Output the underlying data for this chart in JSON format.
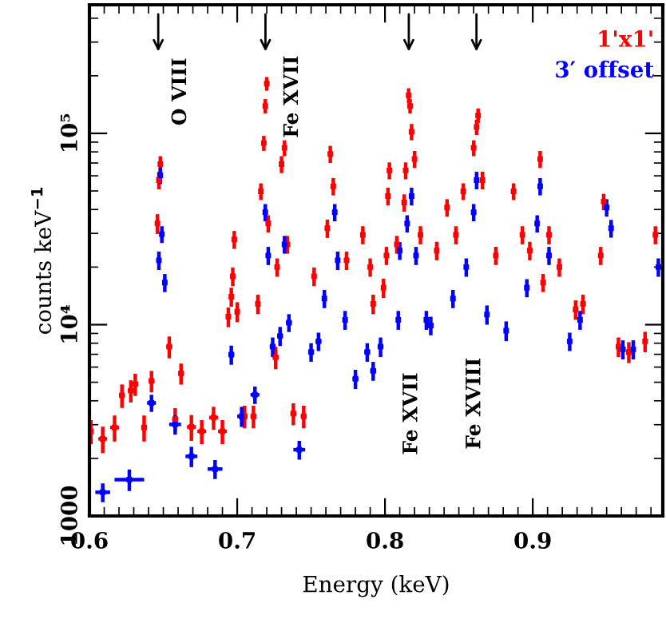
{
  "chart_data": {
    "type": "scatter",
    "xlabel": "Energy (keV)",
    "ylabel": "counts keV$^{−1}$",
    "log": "y",
    "xlim": [
      0.6,
      0.988
    ],
    "xticks": [
      0.6,
      0.7,
      0.8,
      0.9
    ],
    "ylim": [
      1000,
      470000
    ],
    "yticks": [
      1000,
      {
        "value": 10000,
        "label": "10⁴"
      },
      {
        "value": 100000,
        "label": "10⁵"
      }
    ],
    "grid": false,
    "legend": "top right",
    "annotations": [
      "O VIII",
      "Fe XVII",
      "Fe XVII",
      "Fe XVIII"
    ],
    "series": [
      {
        "name": "1'x1'",
        "color": "#ff0000",
        "x": [
          0.601,
          0.609,
          0.617,
          0.622,
          0.628,
          0.631,
          0.637,
          0.642,
          0.646,
          0.647,
          0.648,
          0.654,
          0.658,
          0.662,
          0.669,
          0.676,
          0.684,
          0.69,
          0.694,
          0.696,
          0.697,
          0.698,
          0.7,
          0.705,
          0.711,
          0.714,
          0.716,
          0.718,
          0.719,
          0.72,
          0.721,
          0.726,
          0.727,
          0.73,
          0.732,
          0.734,
          0.738,
          0.745,
          0.752,
          0.761,
          0.763,
          0.765,
          0.774,
          0.785,
          0.79,
          0.792,
          0.799,
          0.801,
          0.802,
          0.803,
          0.808,
          0.813,
          0.814,
          0.816,
          0.817,
          0.818,
          0.82,
          0.824,
          0.835,
          0.842,
          0.848,
          0.853,
          0.86,
          0.862,
          0.863,
          0.866,
          0.875,
          0.887,
          0.893,
          0.898,
          0.905,
          0.907,
          0.911,
          0.918,
          0.929,
          0.934,
          0.946,
          0.948,
          0.958,
          0.965,
          0.976,
          0.983
        ],
        "values": [
          2770,
          2530,
          2900,
          4270,
          4520,
          4890,
          2900,
          5080,
          33800,
          57000,
          69000,
          7670,
          3210,
          5560,
          2920,
          2770,
          3270,
          2770,
          11000,
          14000,
          17900,
          27900,
          11700,
          3320,
          3320,
          12850,
          49800,
          89000,
          139000,
          182000,
          33800,
          6750,
          20000,
          69000,
          84000,
          26300,
          3430,
          3320,
          17900,
          31900,
          78000,
          52900,
          21700,
          29500,
          20000,
          12850,
          15600,
          23000,
          47000,
          64000,
          26300,
          43500,
          64000,
          158000,
          139000,
          102000,
          73400,
          29500,
          24400,
          41000,
          29500,
          49800,
          84000,
          108000,
          124000,
          57000,
          23000,
          49800,
          29500,
          24400,
          73400,
          16600,
          29500,
          20000,
          12000,
          12850,
          23000,
          44000,
          7670,
          7200,
          8180,
          29500
        ],
        "errors": [
          400,
          400,
          450,
          600,
          600,
          650,
          450,
          650,
          4000,
          6000,
          7000,
          1000,
          450,
          700,
          450,
          400,
          450,
          400,
          1300,
          1600,
          2000,
          3000,
          1400,
          450,
          450,
          1500,
          5000,
          8000,
          12000,
          15000,
          3500,
          900,
          2200,
          7000,
          8000,
          2800,
          450,
          450,
          2000,
          3500,
          8000,
          5500,
          2400,
          3200,
          2200,
          1500,
          1800,
          2500,
          5000,
          6500,
          2800,
          4500,
          6500,
          14000,
          12000,
          10000,
          7500,
          3200,
          2700,
          4300,
          3200,
          5000,
          8000,
          10000,
          11000,
          6000,
          2500,
          5000,
          3200,
          2700,
          7500,
          1800,
          3200,
          2200,
          1400,
          1500,
          2500,
          4300,
          900,
          900,
          1000,
          3200
        ],
        "xerrors": [
          0.001,
          0.003,
          0.003,
          0.002,
          0.002,
          0.002,
          0.002,
          0.002,
          0.001,
          0.001,
          0.001,
          0.002,
          0.002,
          0.002,
          0.003,
          0.003,
          0.003,
          0.003,
          0.001,
          0.001,
          0.001,
          0.001,
          0.001,
          0.002,
          0.002,
          0.001,
          0.001,
          0.001,
          0.001,
          0.001,
          0.001,
          0.002,
          0.001,
          0.001,
          0.001,
          0.001,
          0.002,
          0.002,
          0.001,
          0.001,
          0.001,
          0.001,
          0.001,
          0.001,
          0.001,
          0.001,
          0.001,
          0.001,
          0.001,
          0.001,
          0.001,
          0.001,
          0.001,
          0.001,
          0.001,
          0.001,
          0.001,
          0.001,
          0.001,
          0.001,
          0.001,
          0.001,
          0.001,
          0.001,
          0.001,
          0.001,
          0.001,
          0.001,
          0.001,
          0.001,
          0.001,
          0.001,
          0.001,
          0.001,
          0.001,
          0.001,
          0.001,
          0.001,
          0.001,
          0.001,
          0.001,
          0.001
        ]
      },
      {
        "name": "3′ offset",
        "color": "#0000ff",
        "x": [
          0.609,
          0.627,
          0.642,
          0.647,
          0.648,
          0.649,
          0.651,
          0.658,
          0.669,
          0.685,
          0.696,
          0.703,
          0.712,
          0.719,
          0.721,
          0.724,
          0.729,
          0.732,
          0.735,
          0.742,
          0.75,
          0.755,
          0.759,
          0.766,
          0.768,
          0.773,
          0.78,
          0.788,
          0.792,
          0.797,
          0.809,
          0.81,
          0.815,
          0.818,
          0.821,
          0.828,
          0.831,
          0.846,
          0.855,
          0.86,
          0.862,
          0.869,
          0.882,
          0.896,
          0.903,
          0.905,
          0.911,
          0.925,
          0.932,
          0.95,
          0.953,
          0.961,
          0.968,
          0.985
        ],
        "values": [
          1330,
          1550,
          3900,
          21700,
          60300,
          29700,
          16600,
          3010,
          2050,
          1760,
          6970,
          3320,
          4300,
          38700,
          23000,
          7670,
          8730,
          26300,
          10250,
          2220,
          7200,
          8180,
          13700,
          38700,
          21700,
          10600,
          5210,
          7200,
          5740,
          7670,
          10600,
          24400,
          33800,
          47000,
          23000,
          10600,
          9900,
          13700,
          20000,
          38700,
          57000,
          11300,
          9300,
          15600,
          33800,
          52900,
          23000,
          8180,
          10600,
          41000,
          31900,
          7430,
          7430,
          20000
        ],
        "errors": [
          150,
          200,
          400,
          2400,
          6000,
          3000,
          1800,
          350,
          250,
          200,
          800,
          400,
          450,
          4000,
          2500,
          900,
          1000,
          2800,
          1100,
          250,
          800,
          900,
          1500,
          4000,
          2400,
          1200,
          600,
          800,
          650,
          900,
          1200,
          2600,
          3500,
          5000,
          2500,
          1200,
          1100,
          1500,
          2200,
          4000,
          6000,
          1300,
          1100,
          1700,
          3500,
          5500,
          2500,
          900,
          1200,
          4300,
          3400,
          850,
          850,
          2200
        ],
        "xerrors": [
          0.005,
          0.01,
          0.003,
          0.001,
          0.001,
          0.001,
          0.001,
          0.004,
          0.004,
          0.005,
          0.002,
          0.003,
          0.003,
          0.001,
          0.001,
          0.002,
          0.002,
          0.001,
          0.002,
          0.004,
          0.002,
          0.002,
          0.001,
          0.001,
          0.001,
          0.001,
          0.002,
          0.002,
          0.002,
          0.002,
          0.001,
          0.001,
          0.001,
          0.001,
          0.001,
          0.001,
          0.001,
          0.001,
          0.001,
          0.001,
          0.001,
          0.001,
          0.001,
          0.001,
          0.001,
          0.001,
          0.001,
          0.001,
          0.001,
          0.001,
          0.001,
          0.001,
          0.001,
          0.001
        ]
      }
    ]
  }
}
